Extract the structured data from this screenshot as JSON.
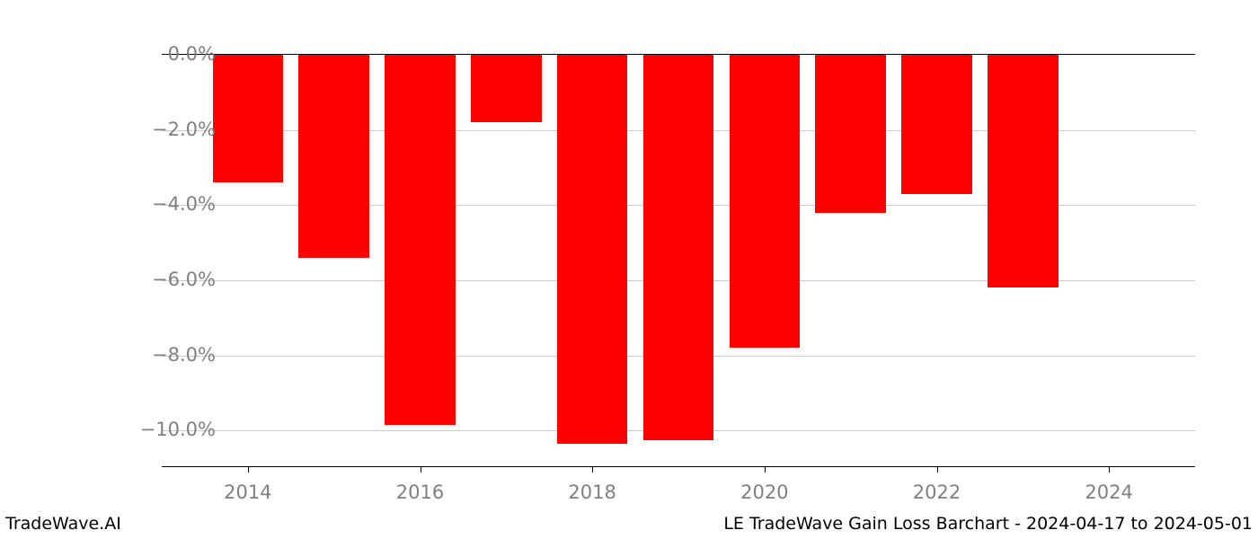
{
  "chart": {
    "type": "bar",
    "background_color": "#ffffff",
    "grid_color": "#cccccc",
    "axis_label_color": "#808080",
    "footer_text_color": "#000000",
    "bar_color": "#fe0000",
    "tick_fontsize": 21,
    "footer_fontsize": 19,
    "y_min": -11.0,
    "y_max": 0.0,
    "y_ticks": [
      0.0,
      -2.0,
      -4.0,
      -6.0,
      -8.0,
      -10.0
    ],
    "y_tick_labels": [
      "0.0%",
      "−2.0%",
      "−4.0%",
      "−6.0%",
      "−8.0%",
      "−10.0%"
    ],
    "x_domain_min": 2013,
    "x_domain_max": 2025,
    "x_ticks": [
      2014,
      2016,
      2018,
      2020,
      2022,
      2024
    ],
    "x_tick_labels": [
      "2014",
      "2016",
      "2018",
      "2020",
      "2022",
      "2024"
    ],
    "bar_width": 0.82,
    "data": [
      {
        "year": 2014,
        "value": -3.4
      },
      {
        "year": 2015,
        "value": -5.4
      },
      {
        "year": 2016,
        "value": -9.85
      },
      {
        "year": 2017,
        "value": -1.8
      },
      {
        "year": 2018,
        "value": -10.35
      },
      {
        "year": 2019,
        "value": -10.25
      },
      {
        "year": 2020,
        "value": -7.8
      },
      {
        "year": 2021,
        "value": -4.2
      },
      {
        "year": 2022,
        "value": -3.7
      },
      {
        "year": 2023,
        "value": -6.2
      }
    ]
  },
  "footer": {
    "left": "TradeWave.AI",
    "right": "LE TradeWave Gain Loss Barchart - 2024-04-17 to 2024-05-01"
  }
}
